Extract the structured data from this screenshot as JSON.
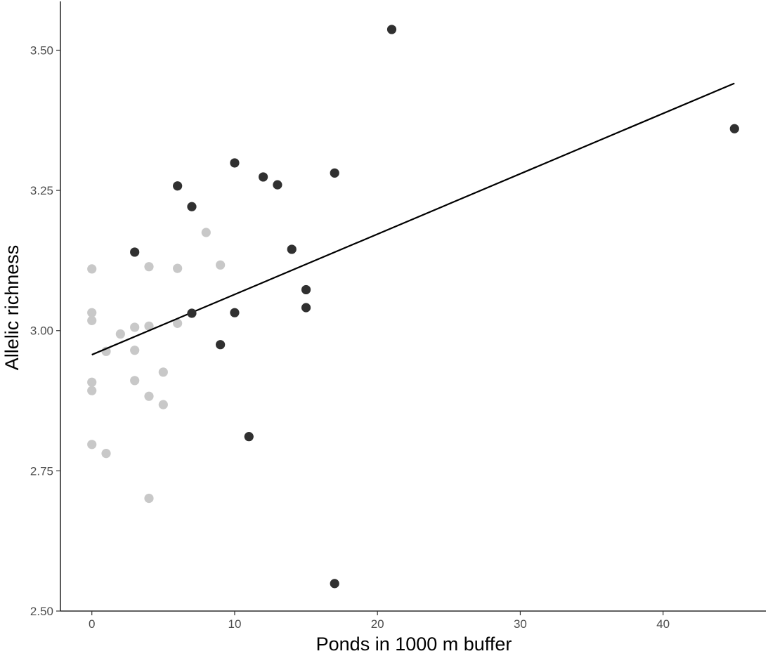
{
  "chart_data": {
    "type": "scatter",
    "title": "",
    "xlabel": "Ponds in 1000 m buffer",
    "ylabel": "Allelic richness",
    "xlim": [
      -2.2,
      47.2
    ],
    "ylim": [
      2.5,
      3.587
    ],
    "x_ticks": [
      0,
      10,
      20,
      30,
      40
    ],
    "x_tick_labels": [
      "0",
      "10",
      "20",
      "30",
      "40"
    ],
    "y_ticks": [
      2.5,
      2.75,
      3.0,
      3.25,
      3.5
    ],
    "y_tick_labels": [
      "2.50",
      "2.75",
      "3.00",
      "3.25",
      "3.50"
    ],
    "grid": false,
    "legend": "none",
    "colors": {
      "light": "#c8c8c8",
      "dark": "#303030",
      "line": "#000000"
    },
    "series": [
      {
        "color": "#c8c8c8",
        "points": [
          {
            "x": 0,
            "y": 3.11
          },
          {
            "x": 0,
            "y": 3.032
          },
          {
            "x": 0,
            "y": 3.018
          },
          {
            "x": 0,
            "y": 2.908
          },
          {
            "x": 0,
            "y": 2.893
          },
          {
            "x": 0,
            "y": 2.797
          },
          {
            "x": 1,
            "y": 2.963
          },
          {
            "x": 1,
            "y": 2.781
          },
          {
            "x": 2,
            "y": 2.994
          },
          {
            "x": 3,
            "y": 3.006
          },
          {
            "x": 3,
            "y": 2.965
          },
          {
            "x": 3,
            "y": 2.911
          },
          {
            "x": 4,
            "y": 3.114
          },
          {
            "x": 4,
            "y": 3.008
          },
          {
            "x": 4,
            "y": 2.883
          },
          {
            "x": 4,
            "y": 2.701
          },
          {
            "x": 5,
            "y": 2.926
          },
          {
            "x": 5,
            "y": 2.868
          },
          {
            "x": 6,
            "y": 3.111
          },
          {
            "x": 6,
            "y": 3.013
          },
          {
            "x": 8,
            "y": 3.175
          },
          {
            "x": 9,
            "y": 3.117
          }
        ]
      },
      {
        "color": "#303030",
        "points": [
          {
            "x": 3,
            "y": 3.14
          },
          {
            "x": 6,
            "y": 3.258
          },
          {
            "x": 7,
            "y": 3.221
          },
          {
            "x": 7,
            "y": 3.031
          },
          {
            "x": 9,
            "y": 2.975
          },
          {
            "x": 10,
            "y": 3.299
          },
          {
            "x": 10,
            "y": 3.032
          },
          {
            "x": 11,
            "y": 2.811
          },
          {
            "x": 12,
            "y": 3.274
          },
          {
            "x": 13,
            "y": 3.26
          },
          {
            "x": 14,
            "y": 3.145
          },
          {
            "x": 15,
            "y": 3.073
          },
          {
            "x": 15,
            "y": 3.041
          },
          {
            "x": 17,
            "y": 3.281
          },
          {
            "x": 17,
            "y": 2.549
          },
          {
            "x": 21,
            "y": 3.537
          },
          {
            "x": 45,
            "y": 3.36
          }
        ]
      }
    ],
    "trend_line": {
      "x": [
        0,
        45
      ],
      "y": [
        2.957,
        3.441
      ]
    }
  }
}
